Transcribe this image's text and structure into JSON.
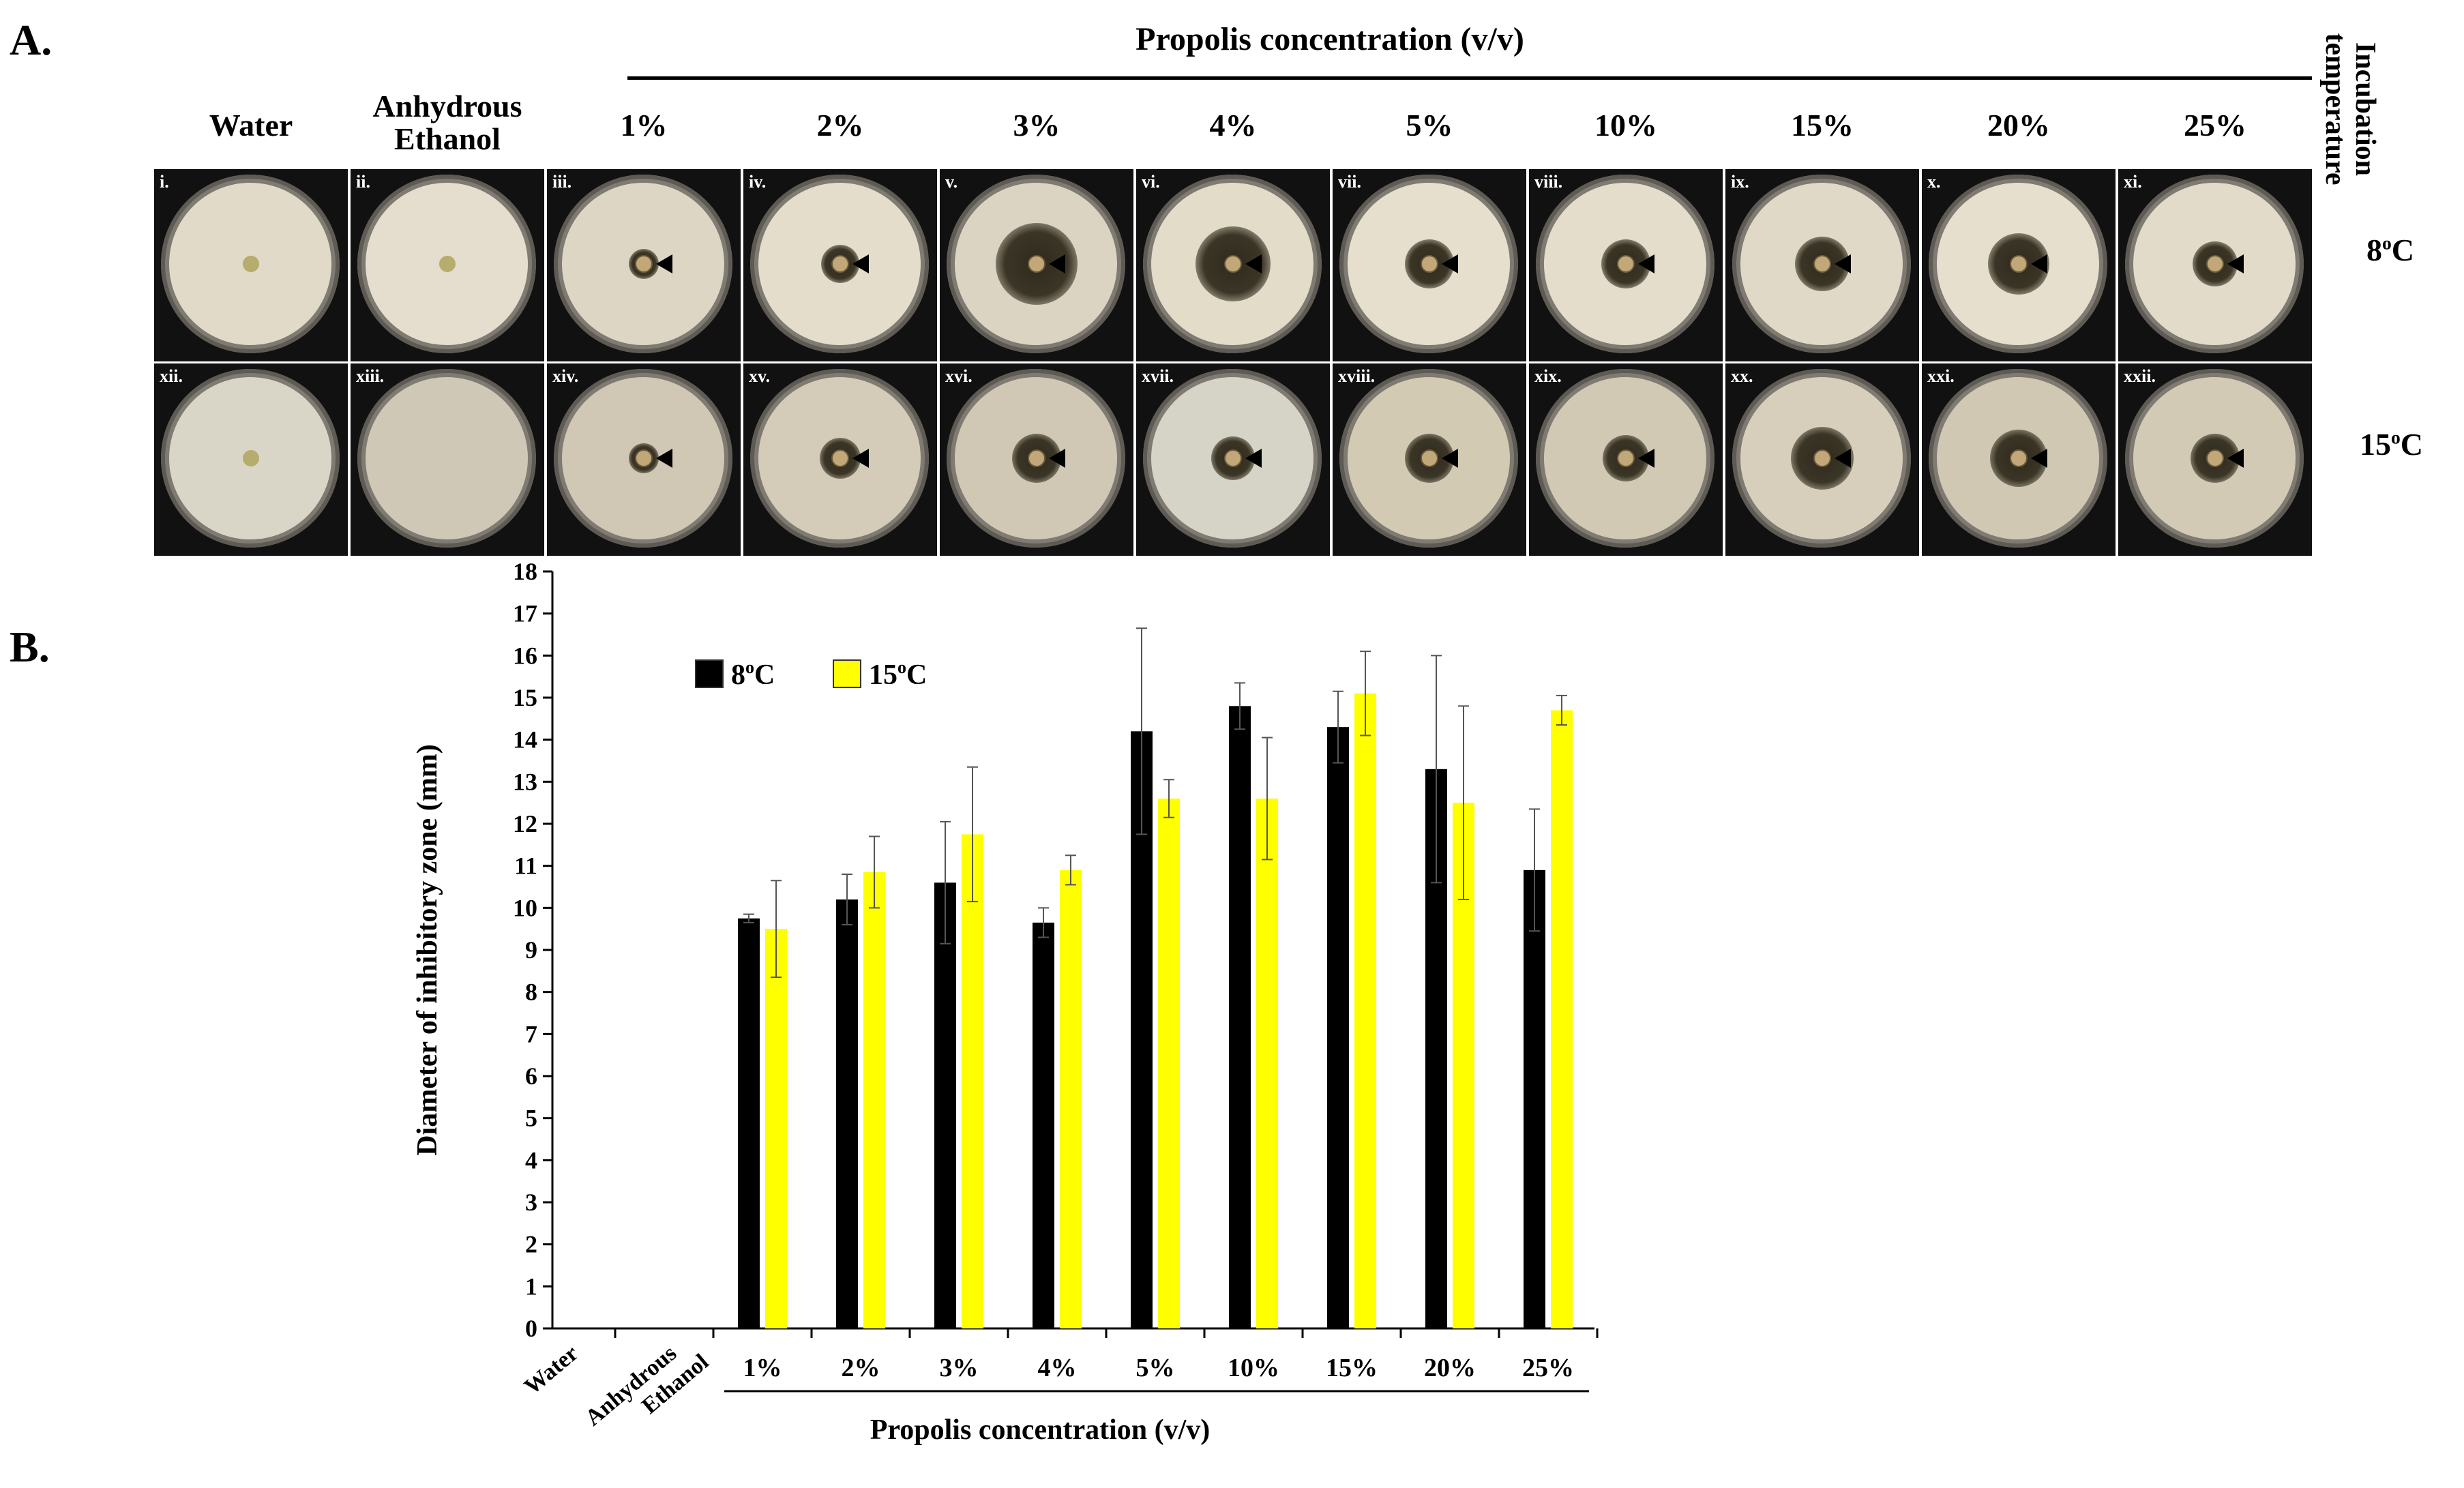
{
  "panel_a": {
    "label": "A.",
    "header": "Propolis concentration (v/v)",
    "columns": [
      "Water",
      "Anhydrous\nEthanol",
      "1%",
      "2%",
      "3%",
      "4%",
      "5%",
      "10%",
      "15%",
      "20%",
      "25%"
    ],
    "incubation_label": "Incubation\ntemperature",
    "row_labels": [
      "8°C",
      "15°C"
    ],
    "plates_row1": [
      "i.",
      "ii.",
      "iii.",
      "iv.",
      "v.",
      "vi.",
      "vii.",
      "viii.",
      "ix.",
      "x.",
      "xi."
    ],
    "plates_row2": [
      "xii.",
      "xiii.",
      "xiv.",
      "xv.",
      "xvi.",
      "xvii.",
      "xviii.",
      "xix.",
      "xx.",
      "xxi.",
      "xxii."
    ]
  },
  "panel_b": {
    "label": "B."
  },
  "chart_data": {
    "type": "bar",
    "title": "",
    "xlabel": "Propolis concentration (v/v)",
    "ylabel": "Diameter of inhibitory zone (mm)",
    "ylim": [
      0,
      18
    ],
    "ytick_step": 1,
    "grid": false,
    "legend_position": "top-left",
    "categories": [
      "Water",
      "Anhydrous Ethanol",
      "1%",
      "2%",
      "3%",
      "4%",
      "5%",
      "10%",
      "15%",
      "20%",
      "25%"
    ],
    "series": [
      {
        "name": "8°C",
        "color": "#000000",
        "values": [
          0,
          0,
          9.75,
          10.2,
          10.6,
          9.65,
          14.2,
          14.8,
          14.3,
          13.3,
          10.9
        ],
        "errors": [
          0,
          0,
          0.1,
          0.6,
          1.45,
          0.35,
          2.45,
          0.55,
          0.85,
          2.7,
          1.45
        ]
      },
      {
        "name": "15°C",
        "color": "#ffff00",
        "values": [
          0,
          0,
          9.5,
          10.85,
          11.75,
          10.9,
          12.6,
          12.6,
          15.1,
          12.5,
          14.7
        ],
        "errors": [
          0,
          0,
          1.15,
          0.85,
          1.6,
          0.35,
          0.45,
          1.45,
          1.0,
          2.3,
          0.35
        ]
      }
    ]
  },
  "colors": {
    "bar_8c": "#000000",
    "bar_15c": "#ffff00",
    "lawn": "#e3dccb",
    "background": "#ffffff"
  }
}
